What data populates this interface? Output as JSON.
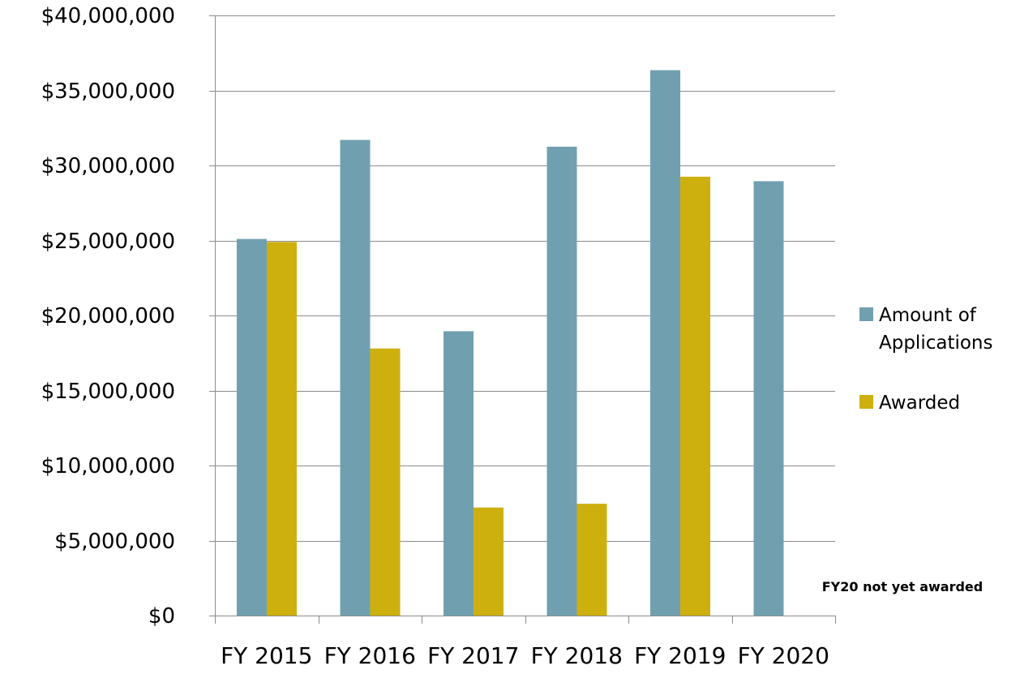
{
  "chart_data": {
    "type": "bar",
    "categories": [
      "FY 2015",
      "FY 2016",
      "FY 2017",
      "FY 2018",
      "FY 2019",
      "FY 2020"
    ],
    "series": [
      {
        "name": "Amount of Applications",
        "legend_lines": [
          "Amount of",
          "Applications"
        ],
        "color": "#70a0b0",
        "values": [
          25100000,
          31700000,
          18950000,
          31250000,
          36350000,
          28950000
        ]
      },
      {
        "name": "Awarded",
        "legend_lines": [
          "Awarded"
        ],
        "color": "#cdb00e",
        "values": [
          24900000,
          17800000,
          7200000,
          7450000,
          29250000,
          null
        ]
      }
    ],
    "ylim": [
      0,
      40000000
    ],
    "yticks": [
      0,
      5000000,
      10000000,
      15000000,
      20000000,
      25000000,
      30000000,
      35000000,
      40000000
    ],
    "ytick_labels": [
      "$0",
      "$5,000,000",
      "$10,000,000",
      "$15,000,000",
      "$20,000,000",
      "$25,000,000",
      "$30,000,000",
      "$35,000,000",
      "$40,000,000"
    ],
    "grid": true,
    "legend_position": "right",
    "annotation": "FY20 not yet awarded",
    "title": "",
    "xlabel": "",
    "ylabel": ""
  }
}
